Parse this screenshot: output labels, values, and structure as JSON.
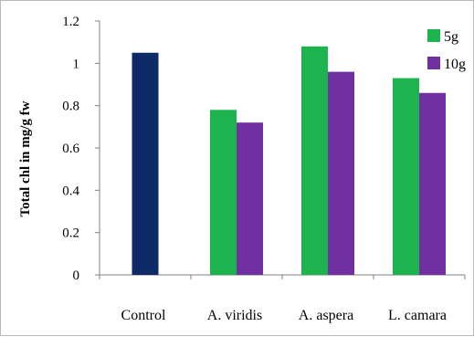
{
  "chart_data": {
    "type": "bar",
    "title": "",
    "xlabel": "",
    "ylabel": "Total chl in mg/g fw",
    "ylim": [
      0,
      1.2
    ],
    "yticks": [
      "0",
      "0.2",
      "0.4",
      "0.6",
      "0.8",
      "1",
      "1.2"
    ],
    "categories": [
      "Control",
      "A. viridis",
      "A. aspera",
      "L. camara"
    ],
    "control": {
      "category": "Control",
      "value": 1.05,
      "color": "#0d2a66"
    },
    "series": [
      {
        "name": "5g",
        "color": "#1db34f",
        "values": [
          null,
          0.78,
          1.08,
          0.93
        ]
      },
      {
        "name": "10g",
        "color": "#7030a0",
        "values": [
          null,
          0.72,
          0.96,
          0.86
        ]
      }
    ],
    "grid": false,
    "legend_position": "top-right"
  }
}
